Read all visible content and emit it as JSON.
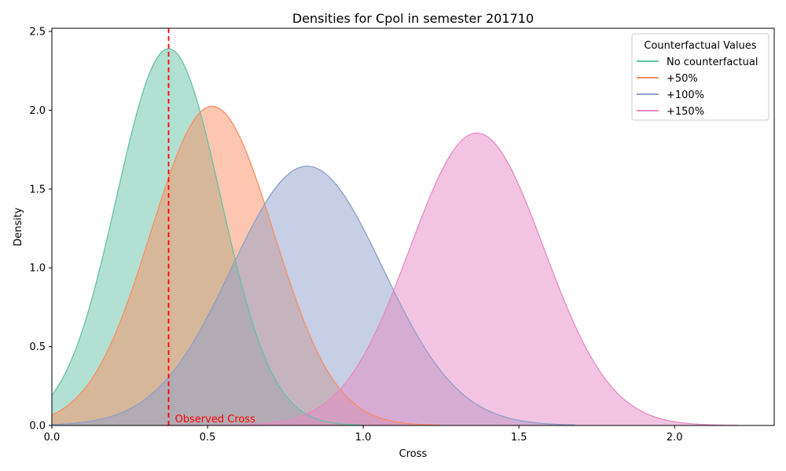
{
  "chart_data": {
    "type": "area",
    "title": "Densities for Cpol in semester 201710",
    "xlabel": "Cross",
    "ylabel": "Density",
    "xlim": [
      0.0,
      2.32
    ],
    "ylim": [
      0.0,
      2.52
    ],
    "xticks": [
      0.0,
      0.5,
      1.0,
      1.5,
      2.0
    ],
    "xtick_labels": [
      "0.0",
      "0.5",
      "1.0",
      "1.5",
      "2.0"
    ],
    "yticks": [
      0.0,
      0.5,
      1.0,
      1.5,
      2.0,
      2.5
    ],
    "ytick_labels": [
      "0.0",
      "0.5",
      "1.0",
      "1.5",
      "2.0",
      "2.5"
    ],
    "grid": false,
    "legend": {
      "title": "Counterfactual Values",
      "placement": "top-right"
    },
    "series": [
      {
        "name": "No counterfactual",
        "color": "#66c2a5",
        "peak_x": 0.375,
        "peak_y": 2.39,
        "sd": 0.167,
        "x_min": 0.0,
        "x_max": 1.0
      },
      {
        "name": "+50%",
        "color": "#fc8d62",
        "peak_x": 0.515,
        "peak_y": 2.025,
        "sd": 0.197,
        "x_min": 0.0,
        "x_max": 1.25
      },
      {
        "name": "+100%",
        "color": "#8da0cb",
        "peak_x": 0.82,
        "peak_y": 1.645,
        "sd": 0.243,
        "x_min": 0.0,
        "x_max": 1.68
      },
      {
        "name": "+150%",
        "color": "#e78ac3",
        "peak_x": 1.365,
        "peak_y": 1.855,
        "sd": 0.215,
        "x_min": 0.35,
        "x_max": 2.2
      }
    ],
    "annotations": [
      {
        "type": "vline",
        "x": 0.375,
        "color": "#ff0000",
        "style": "dashed",
        "label": "Observed Cross"
      }
    ]
  }
}
